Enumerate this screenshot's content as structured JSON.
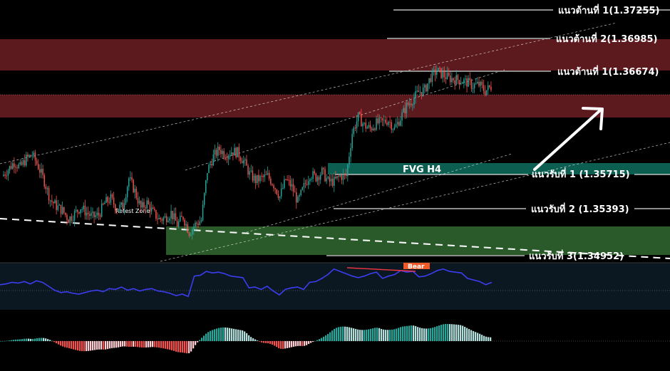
{
  "colors": {
    "background": "#000000",
    "supply_zone": "#5c1a1f",
    "fvg_zone": "#0c5e50",
    "demand_zone": "#2a5a2a",
    "candle_up": "#26a69a",
    "candle_down": "#ef5350",
    "rsi_line": "#3d3df0",
    "rsi_panel": "#0b1822",
    "divergence_line": "#f23645"
  },
  "chart_data": {
    "type": "candlestick",
    "title": "",
    "price_levels": [
      {
        "label": "แนวต้านที่ 1(1.37255)",
        "value": 1.37255,
        "kind": "resistance"
      },
      {
        "label": "แนวต้านที่ 2(1.36985)",
        "value": 1.36985,
        "kind": "resistance"
      },
      {
        "label": "แนวต้านที่ 1(1.36674)",
        "value": 1.36674,
        "kind": "resistance"
      },
      {
        "label": "แนวรับที่ 1 (1.35715)",
        "value": 1.35715,
        "kind": "support"
      },
      {
        "label": "แนวรับที่ 2 (1.35393)",
        "value": 1.35393,
        "kind": "support"
      },
      {
        "label": "แนวรับที่ 3(1.34952)",
        "value": 1.34952,
        "kind": "support"
      }
    ],
    "zones": [
      {
        "label": "",
        "kind": "supply",
        "from": 1.3672,
        "to": 1.3696
      },
      {
        "label": "",
        "kind": "supply",
        "from": 1.3638,
        "to": 1.3658
      },
      {
        "label": "FVG H4",
        "kind": "fvg",
        "from": 1.3571,
        "to": 1.358
      },
      {
        "label": "",
        "kind": "demand",
        "from": 1.3495,
        "to": 1.3518
      }
    ],
    "annotations": {
      "retest_zone": "Retest Zone",
      "fvg_label": "FVG H4",
      "rsi_signal": "Bear"
    },
    "price_path": [
      1.357,
      1.3576,
      1.3583,
      1.3578,
      1.3586,
      1.359,
      1.3579,
      1.3565,
      1.3548,
      1.3542,
      1.3538,
      1.353,
      1.3535,
      1.3541,
      1.3536,
      1.3532,
      1.3534,
      1.3545,
      1.3549,
      1.354,
      1.3542,
      1.3568,
      1.3556,
      1.354,
      1.3545,
      1.3536,
      1.353,
      1.3531,
      1.3536,
      1.3525,
      1.3532,
      1.3518,
      1.3525,
      1.3529,
      1.3575,
      1.3588,
      1.3595,
      1.359,
      1.3593,
      1.3592,
      1.3584,
      1.3572,
      1.3566,
      1.3568,
      1.357,
      1.3562,
      1.3551,
      1.3567,
      1.356,
      1.3546,
      1.356,
      1.3572,
      1.3569,
      1.3574,
      1.3565,
      1.3565,
      1.357,
      1.357,
      1.361,
      1.3625,
      1.3617,
      1.3614,
      1.3619,
      1.362,
      1.3622,
      1.3614,
      1.3624,
      1.3635,
      1.3641,
      1.3648,
      1.365,
      1.3662,
      1.3668,
      1.3664,
      1.3661,
      1.366,
      1.3659,
      1.3657,
      1.3654,
      1.3655,
      1.3649,
      1.3653
    ],
    "rsi_path": [
      52,
      53,
      55,
      54,
      56,
      53,
      57,
      55,
      50,
      45,
      42,
      43,
      41,
      40,
      42,
      44,
      45,
      43,
      47,
      46,
      49,
      45,
      47,
      44,
      46,
      47,
      44,
      43,
      41,
      38,
      40,
      37,
      63,
      64,
      69,
      67,
      68,
      66,
      63,
      62,
      61,
      48,
      49,
      46,
      50,
      44,
      39,
      46,
      48,
      49,
      46,
      55,
      56,
      60,
      65,
      72,
      69,
      66,
      63,
      61,
      63,
      66,
      68,
      60,
      63,
      65,
      70,
      68,
      69,
      62,
      63,
      66,
      70,
      72,
      69,
      68,
      67,
      60,
      58,
      56,
      52,
      55
    ]
  }
}
